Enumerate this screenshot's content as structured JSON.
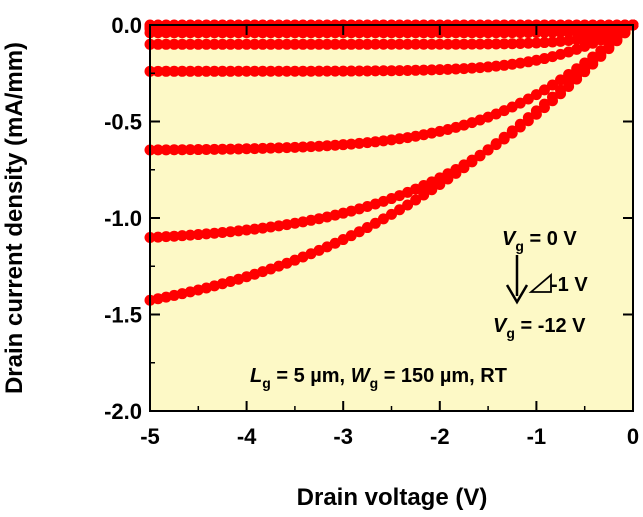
{
  "chart_data": {
    "type": "scatter",
    "xlabel": "Drain voltage (V)",
    "ylabel": "Drain current density (mA/mm)",
    "xlim": [
      -5,
      0
    ],
    "ylim": [
      -2.0,
      0.0
    ],
    "xticks": [
      "-5",
      "-4",
      "-3",
      "-2",
      "-1",
      "0"
    ],
    "yticks": [
      "0.0",
      "-0.5",
      "-1.0",
      "-1.5",
      "-2.0"
    ],
    "grid": false,
    "background_color": "#FDF9C6",
    "marker_color": "#FF0000",
    "annotations": {
      "vg_start": {
        "sym": "V",
        "sub": "g",
        "rest": " = 0 V"
      },
      "step": "-1 V",
      "vg_end": {
        "sym": "V",
        "sub": "g",
        "rest": " = -12 V"
      },
      "conditions": {
        "lg_sym": "L",
        "lg_sub": "g",
        "lg_rest": " = 5 µm, ",
        "wg_sym": "W",
        "wg_sub": "g",
        "wg_rest": " = 150 µm, RT"
      }
    },
    "series": [
      {
        "vg": 0,
        "isat": 0.0,
        "vk": 0.3
      },
      {
        "vg": -1,
        "isat": -0.003,
        "vk": 0.3
      },
      {
        "vg": -2,
        "isat": -0.007,
        "vk": 0.3
      },
      {
        "vg": -3,
        "isat": -0.012,
        "vk": 0.35
      },
      {
        "vg": -4,
        "isat": -0.02,
        "vk": 0.4
      },
      {
        "vg": -5,
        "isat": -0.04,
        "vk": 0.45
      },
      {
        "vg": -6,
        "isat": -0.1,
        "vk": 0.6
      },
      {
        "vg": -7,
        "isat": -0.24,
        "vk": 1.0
      },
      {
        "vg": -8,
        "isat": -0.65,
        "vk": 1.6
      },
      {
        "vg": -9,
        "isat": -1.13,
        "vk": 2.3
      },
      {
        "vg": -10,
        "isat": -1.6,
        "vk": 3.5
      }
    ]
  }
}
